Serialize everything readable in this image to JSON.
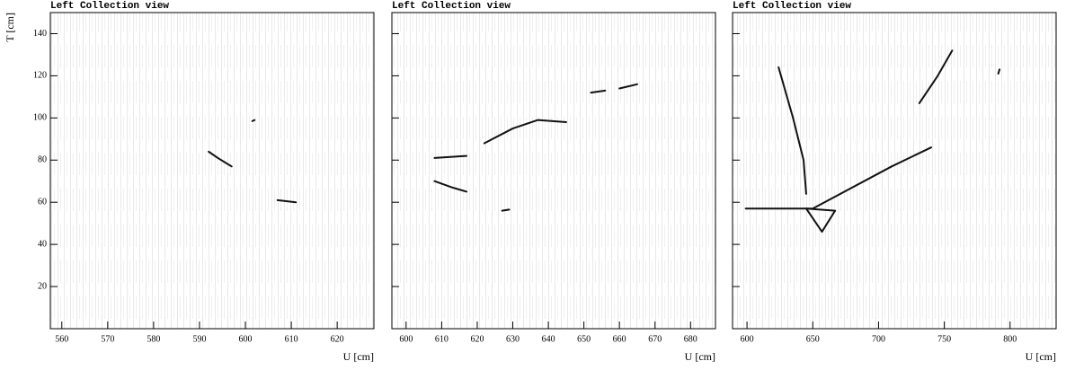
{
  "chart_data": [
    {
      "type": "scatter",
      "title": "Left Collection view",
      "x_label": "U [cm]",
      "y_label": "T [cm]",
      "xlim": [
        557.5,
        628
      ],
      "ylim": [
        0,
        150
      ],
      "xticks": [
        560,
        570,
        580,
        590,
        600,
        610,
        620
      ],
      "yticks": [
        20,
        40,
        60,
        80,
        100,
        120,
        140
      ],
      "color": "#111111",
      "tracks": [
        {
          "x": [
            592,
            594,
            597
          ],
          "y": [
            84,
            81,
            77
          ]
        },
        {
          "x": [
            607,
            611
          ],
          "y": [
            61,
            60
          ]
        },
        {
          "x": [
            601.5,
            602
          ],
          "y": [
            98.5,
            99
          ]
        }
      ]
    },
    {
      "type": "scatter",
      "title": "Left Collection view",
      "x_label": "U [cm]",
      "xlim": [
        596,
        687
      ],
      "ylim": [
        0,
        150
      ],
      "xticks": [
        600,
        610,
        620,
        630,
        640,
        650,
        660,
        670,
        680
      ],
      "yticks": [
        20,
        40,
        60,
        80,
        100,
        120,
        140
      ],
      "color": "#111111",
      "tracks": [
        {
          "x": [
            608,
            617
          ],
          "y": [
            81,
            82
          ]
        },
        {
          "x": [
            608,
            613,
            617
          ],
          "y": [
            70,
            67,
            65
          ]
        },
        {
          "x": [
            622,
            630,
            637,
            645
          ],
          "y": [
            88,
            95,
            99,
            98
          ]
        },
        {
          "x": [
            627,
            629
          ],
          "y": [
            56,
            56.5
          ]
        },
        {
          "x": [
            652,
            656
          ],
          "y": [
            112,
            113
          ]
        },
        {
          "x": [
            660,
            665
          ],
          "y": [
            114,
            116
          ]
        }
      ]
    },
    {
      "type": "scatter",
      "title": "Left Collection view",
      "x_label": "U [cm]",
      "xlim": [
        589,
        835
      ],
      "ylim": [
        0,
        150
      ],
      "xticks": [
        600,
        650,
        700,
        750,
        800
      ],
      "yticks": [
        20,
        40,
        60,
        80,
        100,
        120,
        140
      ],
      "color": "#111111",
      "tracks": [
        {
          "x": [
            599,
            650,
            710,
            740
          ],
          "y": [
            57,
            57,
            77,
            86
          ]
        },
        {
          "x": [
            624,
            635,
            643,
            645
          ],
          "y": [
            124,
            100,
            80,
            64
          ]
        },
        {
          "x": [
            645,
            657,
            667,
            645
          ],
          "y": [
            57,
            46,
            56,
            57
          ]
        },
        {
          "x": [
            731,
            745,
            756
          ],
          "y": [
            107,
            120,
            132
          ]
        },
        {
          "x": [
            791,
            792
          ],
          "y": [
            121,
            123
          ]
        }
      ]
    }
  ]
}
